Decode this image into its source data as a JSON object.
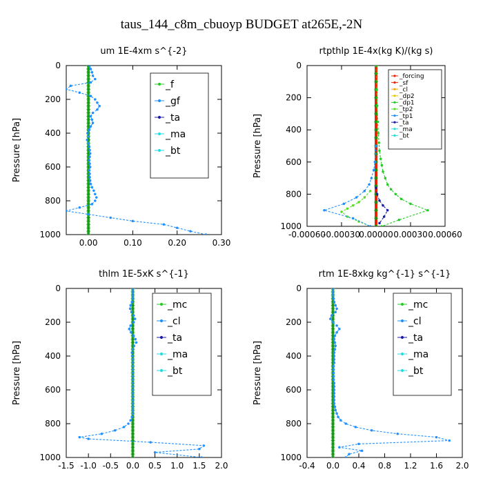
{
  "figure": {
    "title": "taus_144_c8m_cbuoyp  BUDGET at265E,-2N"
  },
  "colors": {
    "green": "#22cc22",
    "blue": "#1e90ff",
    "navy": "#1a1aaa",
    "cyan": "#22dddd",
    "red": "#ee2200",
    "orange": "#ffa500",
    "gold": "#e6c800",
    "lime": "#55dd22"
  },
  "chart_data": [
    {
      "type": "line",
      "title": "um   1E-4xm s^{-2}",
      "ylabel": "Pressure [hPa]",
      "xlim": [
        -0.05,
        0.3
      ],
      "ylim": [
        1000,
        0
      ],
      "xticks": [
        0.0,
        0.1,
        0.2,
        0.3
      ],
      "xtick_labels": [
        "0.00",
        "0.10",
        "0.20",
        "0.30"
      ],
      "yticks": [
        0,
        200,
        400,
        600,
        800,
        1000
      ],
      "ytick_labels": [
        "0",
        "200",
        "400",
        "600",
        "800",
        "1000"
      ],
      "legend": "top-right",
      "series": [
        {
          "name": "_f",
          "color": "#22cc22",
          "x": [
            0,
            0,
            0,
            0,
            0,
            0,
            0,
            0,
            0,
            0,
            0,
            0,
            0,
            0,
            0,
            0,
            0,
            0,
            0,
            0,
            0,
            0,
            0,
            0,
            0,
            0,
            0,
            0,
            0,
            0,
            0,
            0,
            0,
            0,
            0,
            0,
            0,
            0,
            0,
            0,
            0,
            0,
            0,
            0,
            0,
            0,
            0,
            0,
            0,
            0,
            0
          ],
          "y": [
            0,
            20,
            40,
            60,
            80,
            100,
            120,
            140,
            160,
            180,
            200,
            220,
            240,
            260,
            280,
            300,
            320,
            340,
            360,
            380,
            400,
            420,
            440,
            460,
            480,
            500,
            520,
            540,
            560,
            580,
            600,
            620,
            640,
            660,
            680,
            700,
            720,
            740,
            760,
            780,
            800,
            820,
            840,
            860,
            880,
            900,
            920,
            940,
            960,
            980,
            1000
          ]
        },
        {
          "name": "_gf",
          "color": "#1e90ff",
          "x": [
            0.003,
            0.005,
            0.008,
            0.01,
            0.015,
            0.005,
            -0.04,
            -0.05,
            -0.02,
            0.005,
            0.015,
            0.02,
            0.025,
            0.02,
            0.01,
            0.005,
            0.008,
            0.01,
            0.005,
            0.002,
            -0.002,
            0.0,
            -0.003,
            0.0,
            0.002,
            0.003,
            0.004,
            0.003,
            0.002,
            0.003,
            0.004,
            0.002,
            0.003,
            0.003,
            0.004,
            0.005,
            0.008,
            0.012,
            0.015,
            0.018,
            0.015,
            0.008,
            -0.02,
            -0.05,
            0.0,
            0.05,
            0.1,
            0.17,
            0.2,
            0.23,
            0.265
          ],
          "y": [
            0,
            20,
            40,
            60,
            80,
            100,
            120,
            140,
            160,
            180,
            200,
            220,
            240,
            260,
            280,
            300,
            320,
            340,
            360,
            380,
            400,
            420,
            440,
            460,
            480,
            500,
            520,
            540,
            560,
            580,
            600,
            620,
            640,
            660,
            680,
            700,
            720,
            740,
            760,
            780,
            800,
            820,
            840,
            860,
            880,
            900,
            920,
            940,
            960,
            980,
            1000
          ]
        },
        {
          "name": "_ta",
          "color": "#1a1aaa",
          "x": [],
          "y": []
        },
        {
          "name": "_ma",
          "color": "#22dddd",
          "x": [],
          "y": []
        },
        {
          "name": "_bt",
          "color": "#22dddd",
          "x": [],
          "y": []
        }
      ]
    },
    {
      "type": "line",
      "title": "rtpthlp   1E-4x(kg K)/(kg s)",
      "ylabel": "Pressure [hPa]",
      "xlim": [
        -0.0006,
        0.0006
      ],
      "ylim": [
        1000,
        0
      ],
      "xticks": [
        -0.0006,
        -0.0003,
        0.0,
        0.0003,
        0.0006
      ],
      "xtick_labels": [
        "-0.00060",
        "-0.00030",
        "0.00000",
        "0.00030",
        "0.00060"
      ],
      "yticks": [
        0,
        200,
        400,
        600,
        800,
        1000
      ],
      "ytick_labels": [
        "0",
        "200",
        "400",
        "600",
        "800",
        "1000"
      ],
      "legend": "top-right",
      "series": [
        {
          "name": "_forcing",
          "color": "#ee2200",
          "x": [
            0,
            0,
            0,
            0,
            0,
            0,
            0,
            0,
            0,
            0,
            0,
            0,
            0,
            0,
            0,
            0,
            0,
            0,
            0,
            0,
            0
          ],
          "y": [
            0,
            50,
            100,
            150,
            200,
            250,
            300,
            350,
            400,
            450,
            500,
            550,
            600,
            650,
            700,
            750,
            800,
            850,
            900,
            950,
            1000
          ]
        },
        {
          "name": "_sf",
          "color": "#ee2200",
          "x": [],
          "y": []
        },
        {
          "name": "_cl",
          "color": "#ffa500",
          "x": [],
          "y": []
        },
        {
          "name": "_dp2",
          "color": "#e6c800",
          "x": [],
          "y": []
        },
        {
          "name": "_dp1",
          "color": "#22cc22",
          "x": [
            0.0,
            5e-06,
            1e-05,
            1.5e-05,
            2e-05,
            2.5e-05,
            3e-05,
            4e-05,
            5e-05,
            6e-05,
            8e-05,
            0.0001,
            0.00013,
            0.00017,
            0.00022,
            0.0003,
            0.00045,
            0.0002,
            5e-05
          ],
          "y": [
            0,
            150,
            250,
            350,
            420,
            480,
            530,
            580,
            620,
            660,
            700,
            740,
            770,
            800,
            830,
            860,
            900,
            960,
            1000
          ]
        },
        {
          "name": "_tp2",
          "color": "#55dd22",
          "x": [
            -5e-05,
            -0.0001,
            -0.00015,
            -0.0002,
            -0.00025,
            -0.0003,
            -0.00025,
            -0.00015,
            -5e-05
          ],
          "y": [
            780,
            820,
            850,
            870,
            890,
            910,
            940,
            970,
            1000
          ]
        },
        {
          "name": "_tp1",
          "color": "#1e90ff",
          "x": [
            0.0,
            -1e-05,
            -2e-05,
            -4e-05,
            -6e-05,
            -0.0001,
            -0.00017,
            -0.00028,
            -0.00045,
            -0.0002,
            -5e-05
          ],
          "y": [
            500,
            600,
            650,
            700,
            740,
            780,
            820,
            860,
            900,
            950,
            1000
          ]
        },
        {
          "name": "_ta",
          "color": "#1a1aaa",
          "x": [
            0.0,
            1e-05,
            3e-05,
            6e-05,
            0.0001,
            7e-05,
            3e-05
          ],
          "y": [
            760,
            800,
            840,
            870,
            900,
            940,
            980
          ]
        },
        {
          "name": "_ma",
          "color": "#22dddd",
          "x": [],
          "y": []
        },
        {
          "name": "_bt",
          "color": "#22dddd",
          "x": [],
          "y": []
        }
      ]
    },
    {
      "type": "line",
      "title": "thlm   1E-5xK s^{-1}",
      "ylabel": "Pressure [hPa]",
      "xlim": [
        -1.5,
        2.0
      ],
      "ylim": [
        1000,
        0
      ],
      "xticks": [
        -1.5,
        -1.0,
        -0.5,
        0.0,
        0.5,
        1.0,
        1.5,
        2.0
      ],
      "xtick_labels": [
        "-1.5",
        "-1.0",
        "-0.5",
        "0.0",
        "0.5",
        "1.0",
        "1.5",
        "2.0"
      ],
      "yticks": [
        0,
        200,
        400,
        600,
        800,
        1000
      ],
      "ytick_labels": [
        "0",
        "200",
        "400",
        "600",
        "800",
        "1000"
      ],
      "legend": "top-right",
      "series": [
        {
          "name": "_mc",
          "color": "#22cc22",
          "x": [
            0,
            0,
            0,
            0,
            0,
            0,
            0,
            0,
            0,
            0,
            0,
            0,
            0,
            0,
            0,
            0,
            0,
            0,
            0,
            0,
            0,
            0,
            0,
            0,
            0,
            0,
            0,
            0,
            0,
            0,
            0,
            0,
            0,
            0,
            0,
            0,
            0,
            0,
            0,
            0,
            0,
            0,
            0,
            0,
            0,
            0,
            0,
            0,
            0,
            0,
            0
          ],
          "y": [
            0,
            20,
            40,
            60,
            80,
            100,
            120,
            140,
            160,
            180,
            200,
            220,
            240,
            260,
            280,
            300,
            320,
            340,
            360,
            380,
            400,
            420,
            440,
            460,
            480,
            500,
            520,
            540,
            560,
            580,
            600,
            620,
            640,
            660,
            680,
            700,
            720,
            740,
            760,
            780,
            800,
            820,
            840,
            860,
            880,
            900,
            920,
            940,
            960,
            980,
            1000
          ]
        },
        {
          "name": "_cl",
          "color": "#1e90ff",
          "x": [
            0,
            0,
            0,
            0,
            -0.02,
            -0.05,
            -0.06,
            -0.03,
            0.02,
            0.05,
            0.02,
            -0.05,
            -0.08,
            -0.04,
            0.02,
            0.06,
            0.08,
            0.03,
            0.0,
            -0.02,
            -0.01,
            0.0,
            0.0,
            0.0,
            0.0,
            0.0,
            0.0,
            0.0,
            0.0,
            0.0,
            0.0,
            0.0,
            0.0,
            0.0,
            0.0,
            0.0,
            0.0,
            0.0,
            -0.02,
            -0.05,
            -0.1,
            -0.2,
            -0.4,
            -0.7,
            -1.2,
            -1.0,
            0.4,
            1.6,
            1.5,
            0.5,
            1.55
          ],
          "y": [
            0,
            20,
            40,
            60,
            80,
            100,
            120,
            140,
            160,
            180,
            200,
            220,
            240,
            260,
            280,
            300,
            320,
            340,
            360,
            380,
            400,
            420,
            440,
            460,
            480,
            500,
            520,
            540,
            560,
            580,
            600,
            620,
            640,
            660,
            680,
            700,
            720,
            740,
            760,
            780,
            800,
            820,
            840,
            860,
            880,
            890,
            910,
            930,
            950,
            970,
            1000
          ]
        },
        {
          "name": "_ta",
          "color": "#1a1aaa",
          "x": [],
          "y": []
        },
        {
          "name": "_ma",
          "color": "#22dddd",
          "x": [],
          "y": []
        },
        {
          "name": "_bt",
          "color": "#22dddd",
          "x": [],
          "y": []
        }
      ]
    },
    {
      "type": "line",
      "title": "rtm   1E-8xkg kg^{-1} s^{-1}",
      "ylabel": "Pressure [hPa]",
      "xlim": [
        -0.4,
        2.0
      ],
      "ylim": [
        1000,
        0
      ],
      "xticks": [
        -0.4,
        0.0,
        0.4,
        0.8,
        1.2,
        1.6,
        2.0
      ],
      "xtick_labels": [
        "-0.4",
        "0.0",
        "0.4",
        "0.8",
        "1.2",
        "1.6",
        "2.0"
      ],
      "yticks": [
        0,
        200,
        400,
        600,
        800,
        1000
      ],
      "ytick_labels": [
        "0",
        "200",
        "400",
        "600",
        "800",
        "1000"
      ],
      "legend": "top-right",
      "series": [
        {
          "name": "_mc",
          "color": "#22cc22",
          "x": [
            0,
            0,
            0,
            0,
            0,
            0,
            0,
            0,
            0,
            0,
            0,
            0,
            0,
            0,
            0,
            0,
            0,
            0,
            0,
            0,
            0,
            0,
            0,
            0,
            0,
            0,
            0,
            0,
            0,
            0,
            0,
            0,
            0,
            0,
            0,
            0,
            0,
            0,
            0,
            0,
            0,
            0,
            0,
            0,
            0,
            0,
            0,
            0,
            0,
            0,
            0
          ],
          "y": [
            0,
            20,
            40,
            60,
            80,
            100,
            120,
            140,
            160,
            180,
            200,
            220,
            240,
            260,
            280,
            300,
            320,
            340,
            360,
            380,
            400,
            420,
            440,
            460,
            480,
            500,
            520,
            540,
            560,
            580,
            600,
            620,
            640,
            660,
            680,
            700,
            720,
            740,
            760,
            780,
            800,
            820,
            840,
            860,
            880,
            900,
            920,
            940,
            960,
            980,
            1000
          ]
        },
        {
          "name": "_cl",
          "color": "#1e90ff",
          "x": [
            0.0,
            0.0,
            0.0,
            0.01,
            0.02,
            0.04,
            0.06,
            0.04,
            -0.02,
            -0.04,
            0.0,
            0.06,
            0.1,
            0.06,
            0.03,
            0.02,
            0.03,
            0.04,
            0.03,
            0.02,
            0.02,
            0.02,
            0.02,
            0.01,
            0.01,
            0.01,
            0.01,
            0.01,
            0.02,
            0.02,
            0.02,
            0.02,
            0.02,
            0.02,
            0.02,
            0.03,
            0.04,
            0.06,
            0.08,
            0.12,
            0.2,
            0.35,
            0.6,
            1.0,
            1.6,
            1.8,
            0.4,
            0.1,
            0.45,
            0.25,
            0.2
          ],
          "y": [
            0,
            20,
            40,
            60,
            80,
            100,
            120,
            140,
            160,
            180,
            200,
            220,
            240,
            260,
            280,
            300,
            320,
            340,
            360,
            380,
            400,
            420,
            440,
            460,
            480,
            500,
            520,
            540,
            560,
            580,
            600,
            620,
            640,
            660,
            680,
            700,
            720,
            740,
            760,
            780,
            800,
            820,
            840,
            860,
            880,
            900,
            920,
            940,
            960,
            980,
            1000
          ]
        },
        {
          "name": "_ta",
          "color": "#1a1aaa",
          "x": [],
          "y": []
        },
        {
          "name": "_ma",
          "color": "#22dddd",
          "x": [],
          "y": []
        },
        {
          "name": "_bt",
          "color": "#22dddd",
          "x": [],
          "y": []
        }
      ]
    }
  ]
}
